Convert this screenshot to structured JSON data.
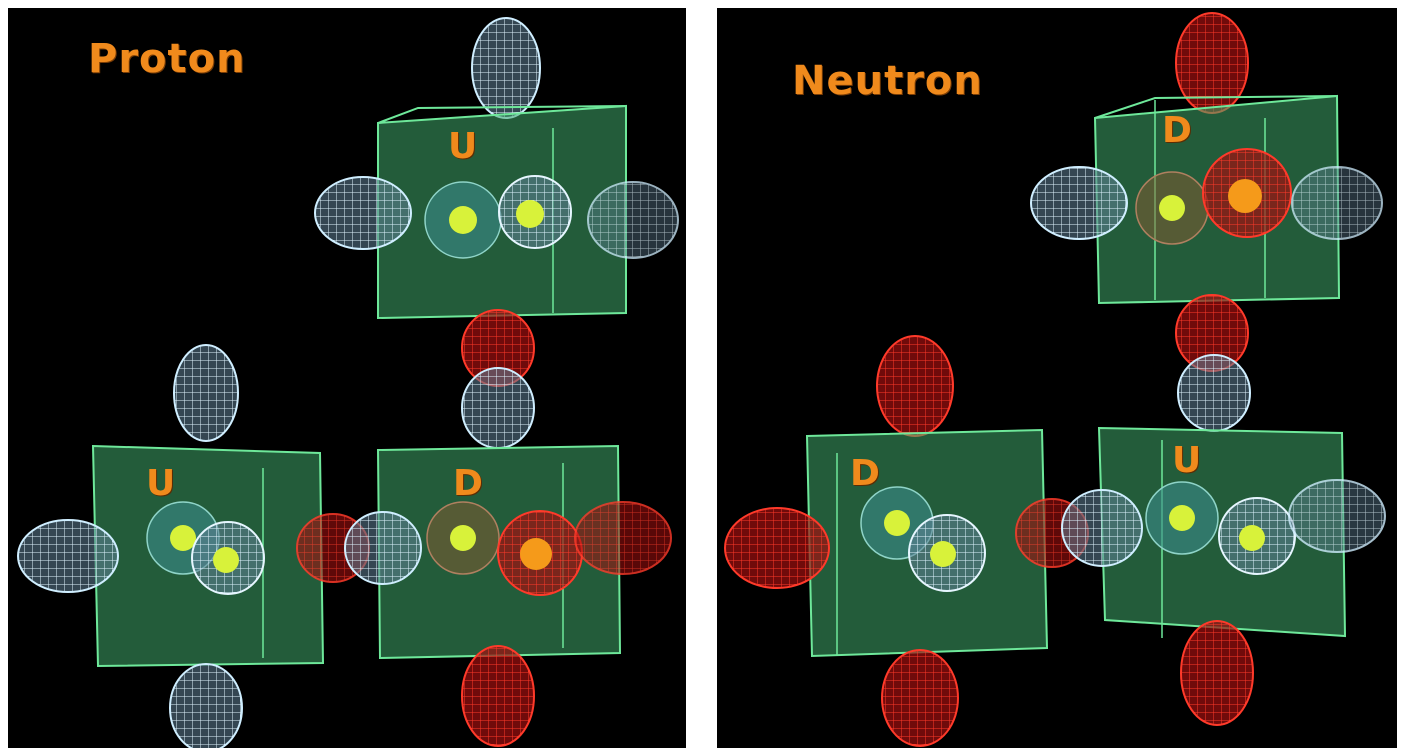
{
  "panels": [
    {
      "title": "Proton",
      "quarks": [
        {
          "label": "U"
        },
        {
          "label": "U"
        },
        {
          "label": "D"
        }
      ]
    },
    {
      "title": "Neutron",
      "quarks": [
        {
          "label": "D"
        },
        {
          "label": "D"
        },
        {
          "label": "U"
        }
      ]
    }
  ],
  "colors": {
    "background": "#000000",
    "cube_fill": "#3fa86a",
    "cube_edge": "#6ee89a",
    "lobe_blue": "#bfe6ff",
    "lobe_red": "#ff2a1a",
    "label": "#f08a1c",
    "core": "#d8f23a"
  }
}
